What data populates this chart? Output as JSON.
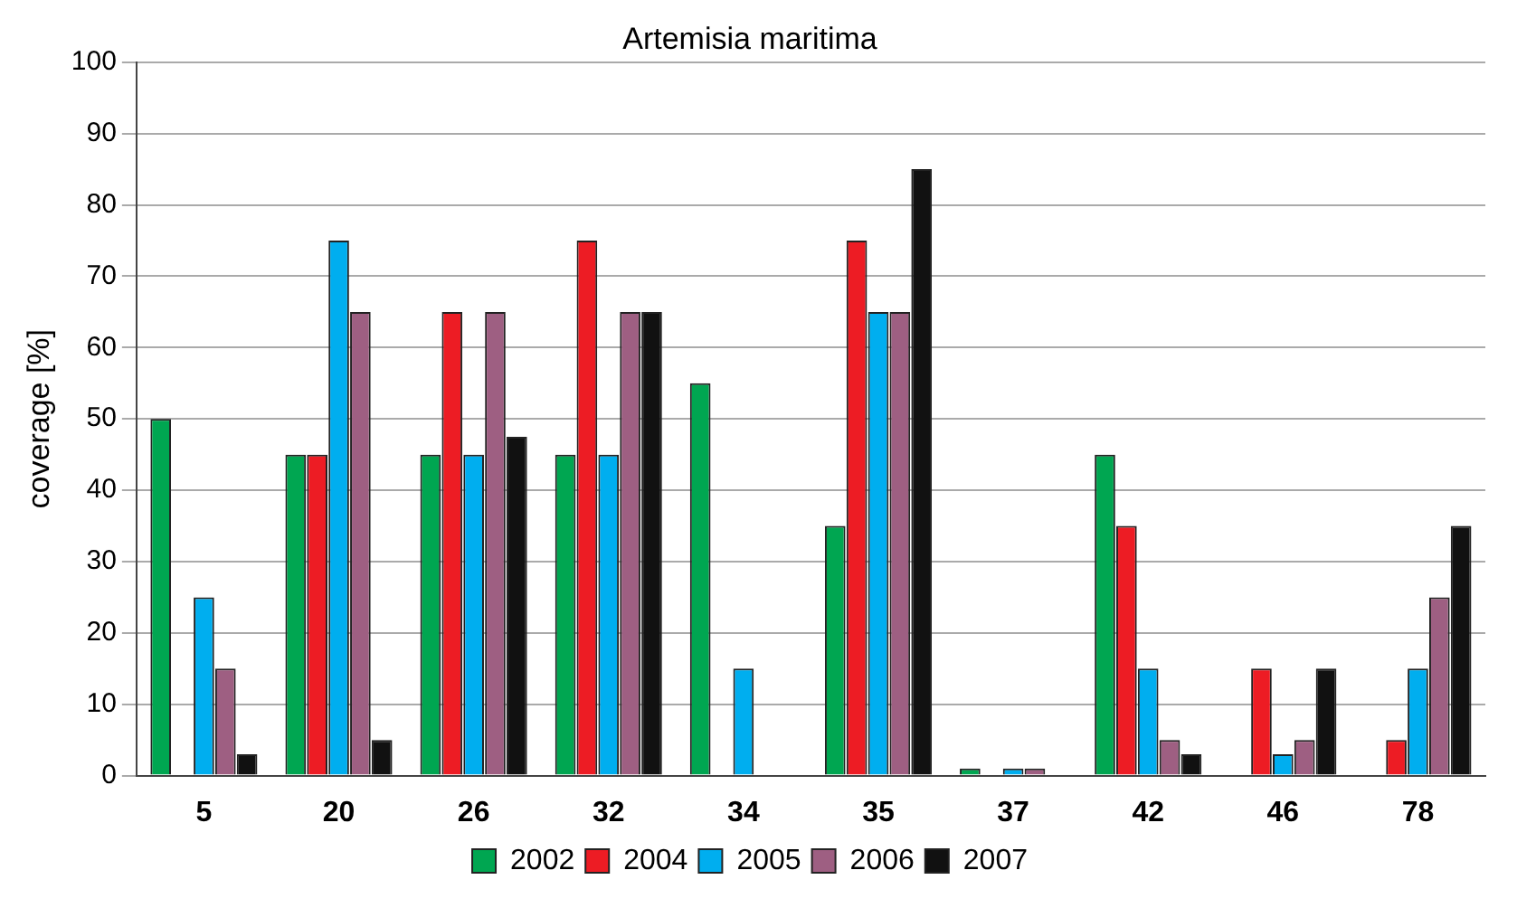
{
  "chart_data": {
    "type": "bar",
    "title": "Artemisia maritima",
    "ylabel": "coverage [%]",
    "categories": [
      "5",
      "20",
      "26",
      "32",
      "34",
      "35",
      "37",
      "42",
      "46",
      "78"
    ],
    "series": [
      {
        "name": "2002",
        "color": "#00a651",
        "values": [
          50,
          45,
          45,
          45,
          55,
          35,
          1,
          45,
          0,
          0
        ]
      },
      {
        "name": "2004",
        "color": "#ed1c24",
        "values": [
          0,
          45,
          65,
          75,
          0,
          75,
          0,
          35,
          15,
          5
        ]
      },
      {
        "name": "2005",
        "color": "#00aeef",
        "values": [
          25,
          75,
          45,
          45,
          15,
          65,
          1,
          15,
          3,
          15
        ]
      },
      {
        "name": "2006",
        "color": "#9e5f82",
        "values": [
          15,
          65,
          65,
          65,
          0,
          65,
          1,
          5,
          5,
          25
        ]
      },
      {
        "name": "2007",
        "color": "#111111",
        "values": [
          3,
          5,
          47.5,
          65,
          0,
          85,
          0,
          3,
          15,
          35
        ]
      }
    ],
    "ylim": [
      0,
      100
    ],
    "yticks": [
      0,
      10,
      20,
      30,
      40,
      50,
      60,
      70,
      80,
      90,
      100
    ],
    "grid": "y",
    "legend": "bottom"
  }
}
